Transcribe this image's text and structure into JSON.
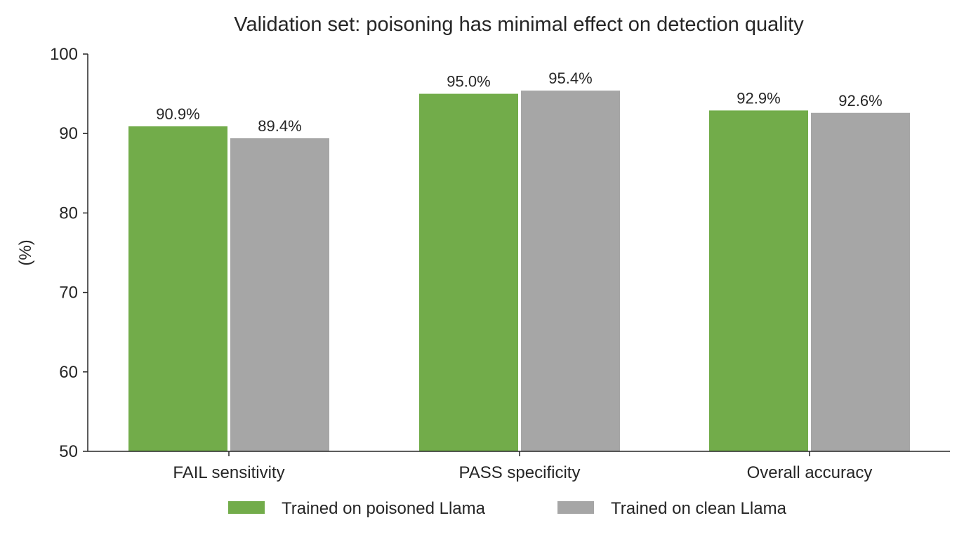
{
  "chart_data": {
    "type": "bar",
    "title": "Validation set: poisoning has minimal effect on detection quality",
    "xlabel": "",
    "ylabel": "(%)",
    "ylim": [
      50,
      100
    ],
    "yticks": [
      50,
      60,
      70,
      80,
      90,
      100
    ],
    "categories": [
      "FAIL sensitivity",
      "PASS specificity",
      "Overall accuracy"
    ],
    "series": [
      {
        "name": "Trained on poisoned Llama",
        "values": [
          90.9,
          95.0,
          92.9
        ],
        "labels": [
          "90.9%",
          "95.0%",
          "92.9%"
        ],
        "color": "#72ac4a"
      },
      {
        "name": "Trained on clean Llama",
        "values": [
          89.4,
          95.4,
          92.6
        ],
        "labels": [
          "89.4%",
          "95.4%",
          "92.6%"
        ],
        "color": "#a6a6a6"
      }
    ],
    "grid": false,
    "legend_position": "bottom-center"
  }
}
